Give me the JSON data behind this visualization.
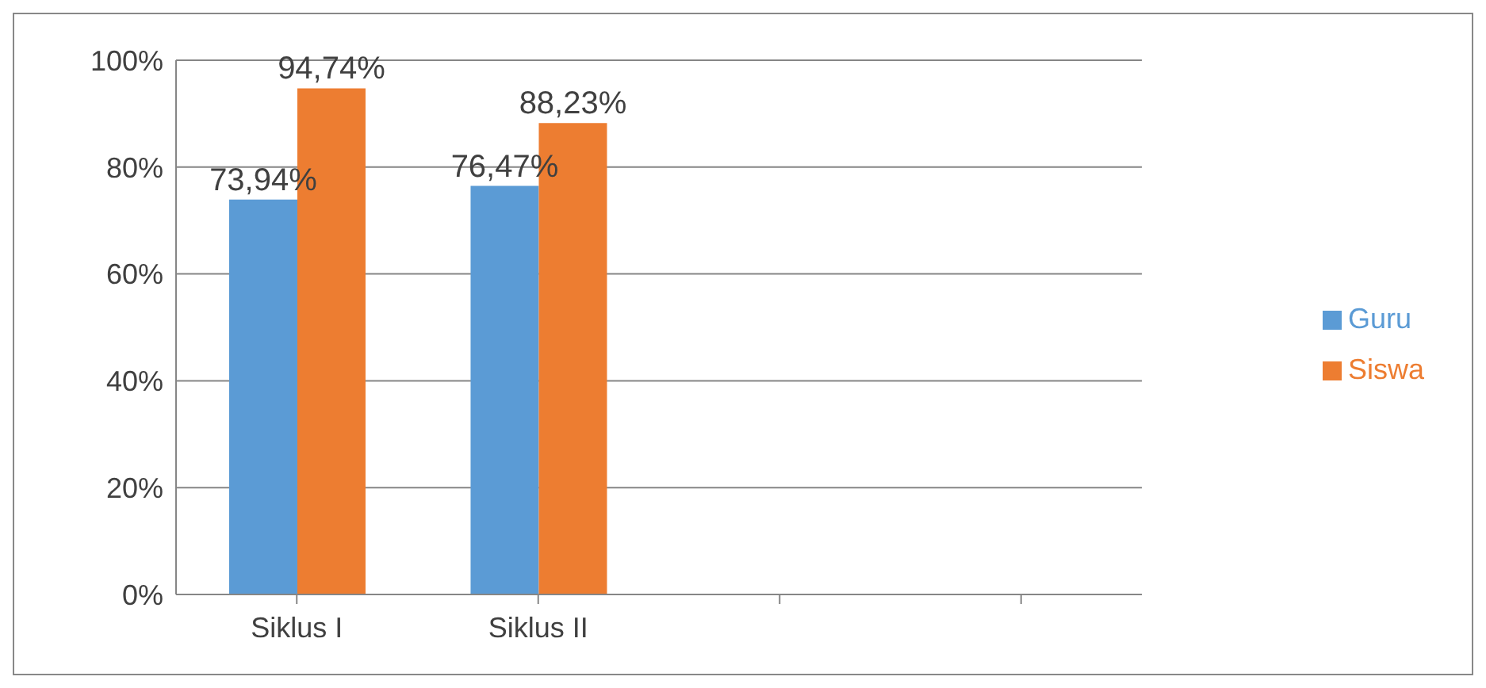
{
  "chart_data": {
    "type": "bar",
    "categories": [
      "Siklus I",
      "Siklus II",
      null,
      null
    ],
    "series": [
      {
        "name": "Guru",
        "color": "#5b9bd5",
        "values": [
          73.94,
          76.47,
          null,
          null
        ],
        "value_labels": [
          "73,94%",
          "76,47%",
          null,
          null
        ]
      },
      {
        "name": "Siswa",
        "color": "#ed7d31",
        "values": [
          94.74,
          88.23,
          null,
          null
        ],
        "value_labels": [
          "94,74%",
          "88,23%",
          null,
          null
        ]
      }
    ],
    "ylim": [
      0,
      100
    ],
    "yticks": [
      {
        "value": 0,
        "label": "0%"
      },
      {
        "value": 20,
        "label": "20%"
      },
      {
        "value": 40,
        "label": "40%"
      },
      {
        "value": 60,
        "label": "60%"
      },
      {
        "value": 80,
        "label": "80%"
      },
      {
        "value": 100,
        "label": "100%"
      }
    ],
    "grid": "y",
    "legend": "right"
  }
}
